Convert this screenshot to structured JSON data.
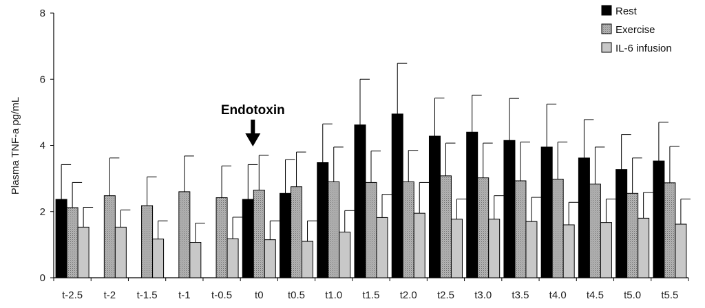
{
  "chart_data": {
    "type": "bar",
    "title": "",
    "xlabel": "",
    "ylabel": "Plasma TNF-a pg/mL",
    "ylim": [
      0,
      8
    ],
    "yticks": [
      0,
      2,
      4,
      6,
      8
    ],
    "grid": false,
    "legend_position": "top-right",
    "categories": [
      "t-2.5",
      "t-2",
      "t-1.5",
      "t-1",
      "t-0.5",
      "t0",
      "t0.5",
      "t1.0",
      "t1.5",
      "t2.0",
      "t2.5",
      "t3.0",
      "t3.5",
      "t4.0",
      "t4.5",
      "t5.0",
      "t5.5"
    ],
    "series": [
      {
        "name": "Rest",
        "color": "#000000",
        "values": [
          2.37,
          null,
          null,
          null,
          null,
          2.37,
          2.55,
          3.48,
          4.62,
          4.95,
          4.28,
          4.4,
          4.15,
          3.95,
          3.62,
          3.27,
          3.53
        ],
        "error_upper": [
          3.42,
          null,
          null,
          null,
          null,
          3.42,
          3.57,
          4.65,
          6.0,
          6.48,
          5.43,
          5.52,
          5.42,
          5.25,
          4.78,
          4.33,
          4.7
        ]
      },
      {
        "name": "Exercise",
        "color": "#a8a8a8",
        "values": [
          2.12,
          2.48,
          2.18,
          2.6,
          2.42,
          2.65,
          2.75,
          2.9,
          2.88,
          2.9,
          3.08,
          3.02,
          2.93,
          2.98,
          2.83,
          2.55,
          2.87
        ],
        "error_upper": [
          2.88,
          3.62,
          3.05,
          3.68,
          3.38,
          3.7,
          3.8,
          3.95,
          3.83,
          3.85,
          4.07,
          4.07,
          4.1,
          4.1,
          3.95,
          3.62,
          3.97
        ]
      },
      {
        "name": "IL-6 infusion",
        "color": "#c8c8c8",
        "values": [
          1.53,
          1.53,
          1.17,
          1.07,
          1.18,
          1.15,
          1.1,
          1.38,
          1.82,
          1.95,
          1.77,
          1.77,
          1.7,
          1.6,
          1.67,
          1.8,
          1.62
        ],
        "error_upper": [
          2.13,
          2.05,
          1.72,
          1.65,
          1.83,
          1.72,
          1.72,
          2.03,
          2.52,
          2.88,
          2.38,
          2.48,
          2.43,
          2.28,
          2.38,
          2.58,
          2.38
        ]
      }
    ],
    "annotation": {
      "text": "Endotoxin",
      "category": "t0"
    }
  },
  "colors": {
    "rest": "#000000",
    "exercise": "#a8a8a8",
    "il6": "#c8c8c8",
    "axis": "#000000"
  }
}
